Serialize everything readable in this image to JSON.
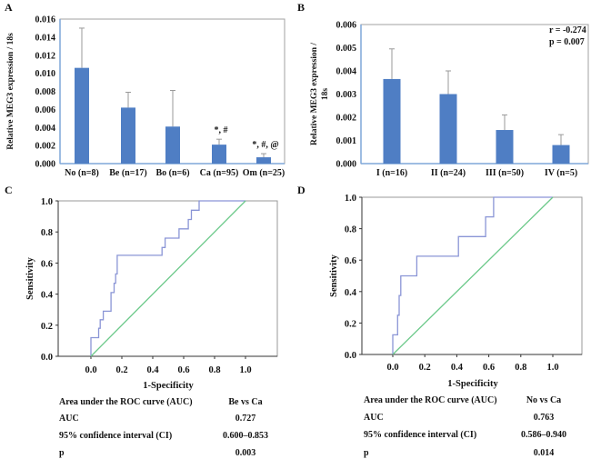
{
  "chart_data": [
    {
      "panel": "A",
      "type": "bar",
      "categories": [
        "No (n=8)",
        "Be (n=17)",
        "Bo (n=6)",
        "Ca (n=95)",
        "Om (n=25)"
      ],
      "values": [
        0.0106,
        0.0062,
        0.0041,
        0.0021,
        0.0007
      ],
      "error_upper": [
        0.015,
        0.0079,
        0.0081,
        0.0027,
        0.0011
      ],
      "annotations": [
        "",
        "",
        "",
        "*, #",
        "*, #, @"
      ],
      "ylabel": "Relative MEG3 expression / 18s",
      "ylim": [
        0,
        0.016
      ],
      "yticks": [
        "0.000",
        "0.002",
        "0.004",
        "0.006",
        "0.008",
        "0.010",
        "0.012",
        "0.014",
        "0.016"
      ],
      "bar_color": "#4f7ec4"
    },
    {
      "panel": "B",
      "type": "bar",
      "categories": [
        "I (n=16)",
        "II (n=24)",
        "III (n=50)",
        "IV (n=5)"
      ],
      "values": [
        0.00365,
        0.003,
        0.00145,
        0.0008
      ],
      "error_upper": [
        0.00495,
        0.004,
        0.0021,
        0.00125
      ],
      "ylabel": [
        "Relative MEG3 expression /",
        "18s"
      ],
      "ylim": [
        0,
        0.006
      ],
      "yticks": [
        "0.000",
        "0.001",
        "0.002",
        "0.003",
        "0.004",
        "0.005",
        "0.006"
      ],
      "stats": [
        "r = -0.274",
        "p = 0.007"
      ],
      "bar_color": "#4f7ec4"
    },
    {
      "panel": "C",
      "type": "line",
      "xlabel": "1-Specificity",
      "ylabel": "Sensitivity",
      "xticks": [
        "0.0",
        "0.2",
        "0.4",
        "0.6",
        "0.8",
        "1.0"
      ],
      "yticks": [
        "0.0",
        "0.2",
        "0.4",
        "0.6",
        "0.8",
        "1.0"
      ],
      "xlim": [
        -0.21,
        1.2
      ],
      "ylim": [
        0,
        1
      ],
      "series": [
        {
          "color": "#8a95d6",
          "x": [
            0,
            0,
            0.05,
            0.05,
            0.06,
            0.06,
            0.08,
            0.08,
            0.13,
            0.13,
            0.15,
            0.15,
            0.16,
            0.16,
            0.17,
            0.17,
            0.46,
            0.46,
            0.48,
            0.48,
            0.57,
            0.57,
            0.63,
            0.63,
            0.65,
            0.65,
            0.7,
            0.7,
            1.0
          ],
          "y": [
            0,
            0.12,
            0.12,
            0.18,
            0.18,
            0.235,
            0.235,
            0.29,
            0.29,
            0.41,
            0.41,
            0.47,
            0.47,
            0.53,
            0.53,
            0.65,
            0.65,
            0.7,
            0.7,
            0.76,
            0.76,
            0.82,
            0.82,
            0.88,
            0.88,
            0.94,
            0.94,
            1.0,
            1.0
          ]
        },
        {
          "color": "#6cc98a",
          "x": [
            0,
            1
          ],
          "y": [
            0,
            1
          ]
        }
      ],
      "table": [
        [
          "Area under the ROC curve (AUC)",
          "Be vs Ca"
        ],
        [
          "AUC",
          "0.727"
        ],
        [
          "95% confidence interval (CI)",
          "0.600–0.853"
        ],
        [
          "p",
          "0.003"
        ]
      ]
    },
    {
      "panel": "D",
      "type": "line",
      "xlabel": "1-Specificity",
      "ylabel": "Sensitivity",
      "xticks": [
        "0.0",
        "0.2",
        "0.4",
        "0.6",
        "0.8",
        "1.0"
      ],
      "yticks": [
        "0.0",
        "0.2",
        "0.4",
        "0.6",
        "0.8",
        "1.0"
      ],
      "xlim": [
        -0.19,
        1.2
      ],
      "ylim": [
        0,
        1
      ],
      "series": [
        {
          "color": "#8a95d6",
          "x": [
            0,
            0,
            0.03,
            0.03,
            0.04,
            0.04,
            0.05,
            0.05,
            0.15,
            0.15,
            0.41,
            0.41,
            0.58,
            0.58,
            0.63,
            0.63,
            1.0
          ],
          "y": [
            0,
            0.125,
            0.125,
            0.25,
            0.25,
            0.375,
            0.375,
            0.5,
            0.5,
            0.625,
            0.625,
            0.75,
            0.75,
            0.875,
            0.875,
            1.0,
            1.0
          ]
        },
        {
          "color": "#6cc98a",
          "x": [
            0,
            1
          ],
          "y": [
            0,
            1
          ]
        }
      ],
      "table": [
        [
          "Area under the ROC curve (AUC)",
          "No vs Ca"
        ],
        [
          "AUC",
          "0.763"
        ],
        [
          "95% confidence interval (CI)",
          "0.586–0.940"
        ],
        [
          "p",
          "0.014"
        ]
      ]
    }
  ]
}
